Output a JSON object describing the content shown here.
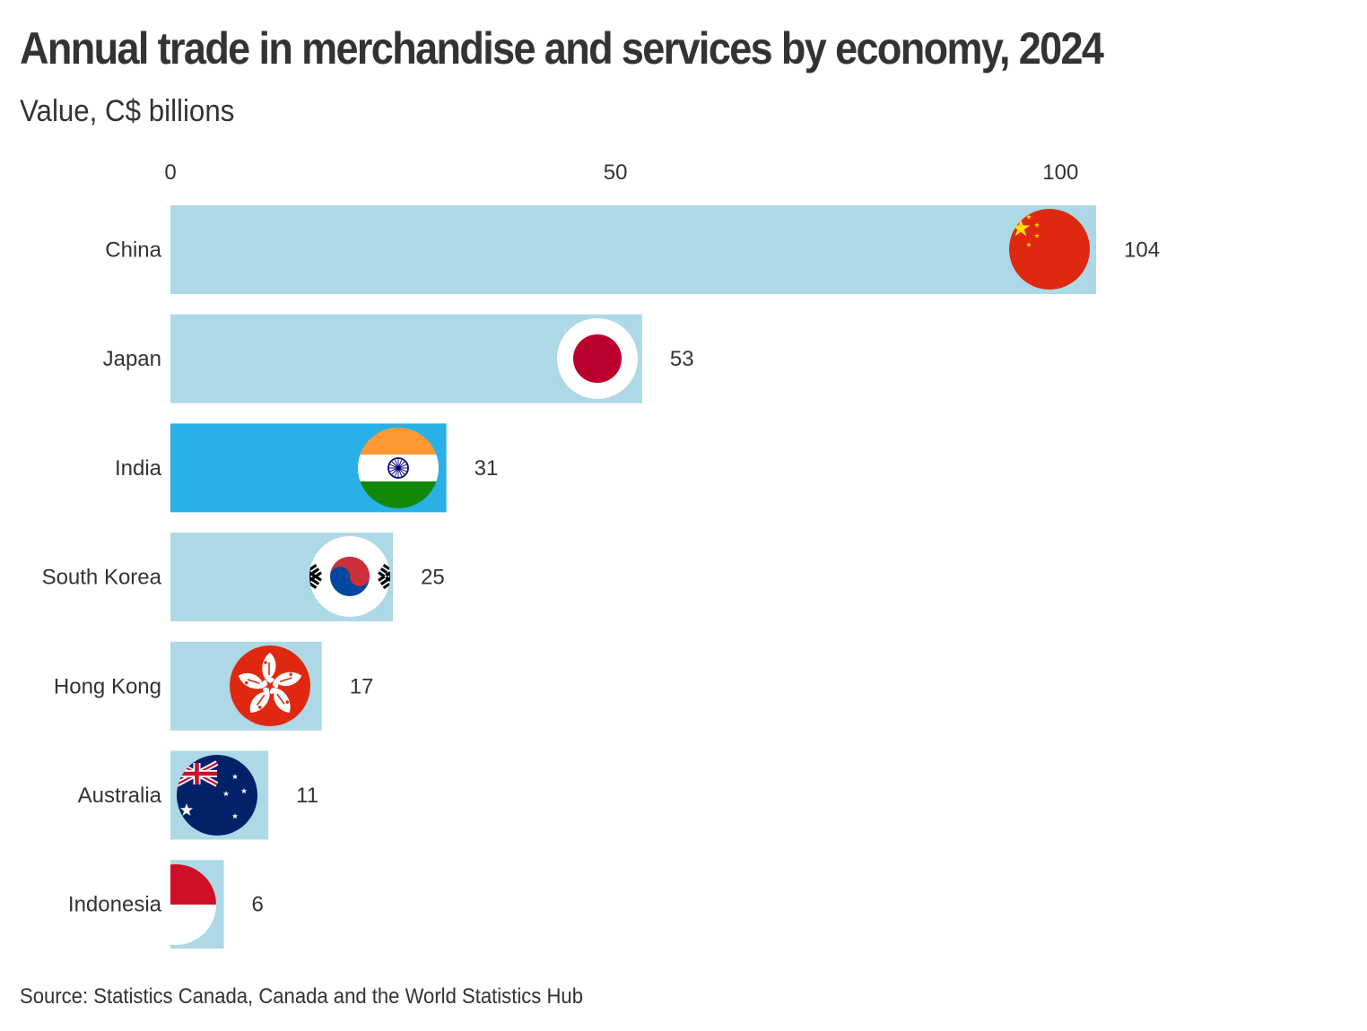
{
  "title": "Annual trade in merchandise and services by economy, 2024",
  "subtitle": "Value, C$ billions",
  "source": "Source: Statistics Canada, Canada and the World Statistics Hub",
  "colors": {
    "bar": "#add8e6",
    "highlight_bar": "#29b1e7",
    "text": "#333333"
  },
  "chart_data": {
    "type": "bar",
    "orientation": "horizontal",
    "title": "Annual trade in merchandise and services by economy, 2024",
    "subtitle": "Value, C$ billions",
    "xlabel": "",
    "ylabel": "",
    "xlim": [
      0,
      104
    ],
    "ticks": [
      0,
      50,
      100
    ],
    "tick_labels": [
      "0",
      "50",
      "100"
    ],
    "grid": false,
    "legend": "none",
    "highlight": "India",
    "categories": [
      "China",
      "Japan",
      "India",
      "South Korea",
      "Hong Kong",
      "Australia",
      "Indonesia"
    ],
    "values": [
      104,
      53,
      31,
      25,
      17,
      11,
      6
    ],
    "value_labels": [
      "104",
      "53",
      "31",
      "25",
      "17",
      "11",
      "6"
    ],
    "flag_icons": [
      "china-flag-icon",
      "japan-flag-icon",
      "india-flag-icon",
      "south-korea-flag-icon",
      "hong-kong-flag-icon",
      "australia-flag-icon",
      "indonesia-flag-icon"
    ]
  }
}
